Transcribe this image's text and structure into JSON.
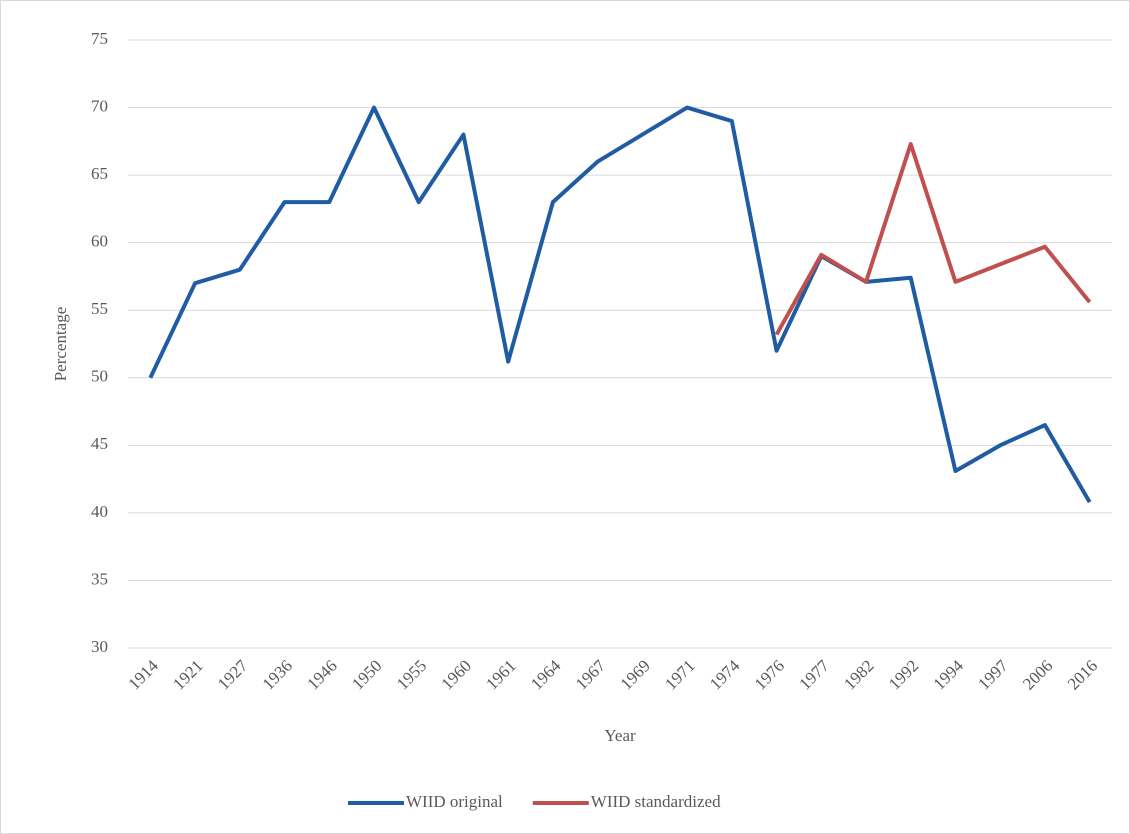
{
  "chart_data": {
    "type": "line",
    "x_label": "Year",
    "y_label": "Percentage",
    "categories": [
      "1914",
      "1921",
      "1927",
      "1936",
      "1946",
      "1950",
      "1955",
      "1960",
      "1961",
      "1964",
      "1967",
      "1969",
      "1971",
      "1974",
      "1976",
      "1977",
      "1982",
      "1992",
      "1994",
      "1997",
      "2006",
      "2016"
    ],
    "series": [
      {
        "name": "WIID original",
        "color": "#1f5ca3",
        "values": [
          50,
          57,
          58,
          63,
          63,
          70,
          63,
          68,
          51.2,
          63,
          66,
          68,
          70,
          69,
          52,
          59,
          57.1,
          57.4,
          43.1,
          45,
          46.5,
          40.8
        ]
      },
      {
        "name": "WIID standardized",
        "color": "#c0504d",
        "values": [
          null,
          null,
          null,
          null,
          null,
          null,
          null,
          null,
          null,
          null,
          null,
          null,
          null,
          null,
          53.2,
          59.1,
          57.1,
          67.3,
          57.1,
          58.4,
          59.7,
          55.6
        ]
      }
    ],
    "ylim": [
      30,
      75
    ],
    "yticks": [
      30,
      35,
      40,
      45,
      50,
      55,
      60,
      65,
      70,
      75
    ],
    "grid": true,
    "legend": "bottom"
  }
}
